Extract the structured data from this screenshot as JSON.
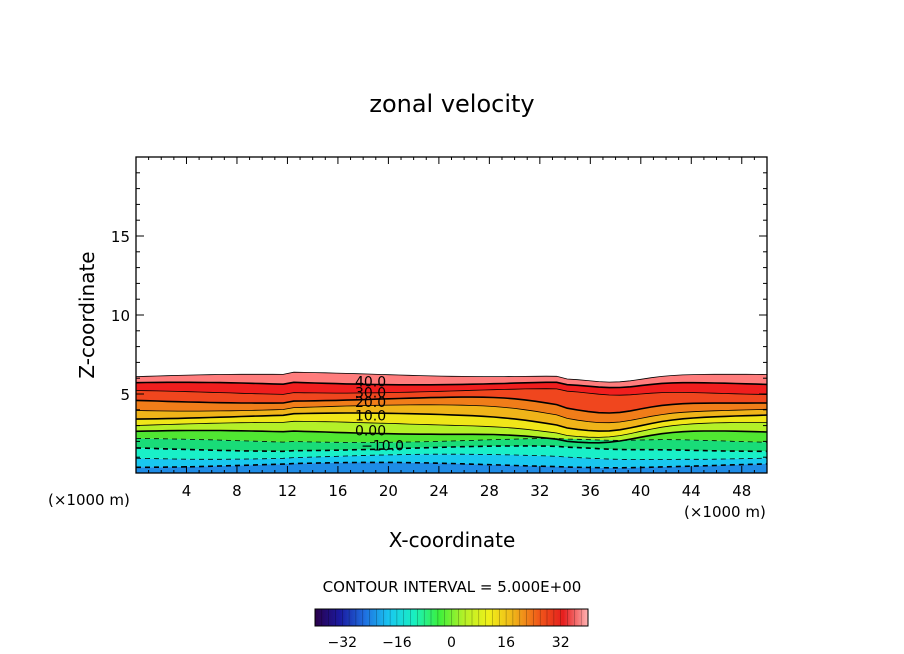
{
  "chart_data": {
    "type": "heatmap",
    "title": "zonal velocity",
    "xlabel": "X-coordinate",
    "ylabel": "Z-coordinate",
    "x_unit_left": "(×1000 m)",
    "x_unit_right": "(×1000 m)",
    "xlim": [
      0,
      50
    ],
    "ylim": [
      0,
      20
    ],
    "x_ticks": [
      "4",
      "8",
      "12",
      "16",
      "20",
      "24",
      "28",
      "32",
      "36",
      "40",
      "44",
      "48"
    ],
    "y_ticks": [
      "5",
      "10",
      "15"
    ],
    "grid": false,
    "contour_interval_label": "CONTOUR INTERVAL = 5.000E+00",
    "contour_labels": [
      "40.0",
      "30.0",
      "20.0",
      "10.0",
      "0.00",
      "−10.0"
    ],
    "contour_levels": [
      40,
      30,
      20,
      10,
      0,
      -10
    ],
    "colorbar": {
      "range": [
        -40,
        40
      ],
      "tick_labels": [
        "−32",
        "−16",
        "0",
        "16",
        "32"
      ],
      "tick_values": [
        -32,
        -16,
        0,
        16,
        32
      ],
      "colors": [
        "#2a004a",
        "#1a1aa0",
        "#1f6fe0",
        "#19c8f0",
        "#19f0c0",
        "#3cf03c",
        "#b4f028",
        "#f0f019",
        "#f0b419",
        "#f05a19",
        "#e61e1e",
        "#ffb4b4"
      ]
    },
    "field_colors": [
      {
        "value": 38,
        "color": "#ff7d7d"
      },
      {
        "value": 33,
        "color": "#f01e1e"
      },
      {
        "value": 28,
        "color": "#f0461e"
      },
      {
        "value": 23,
        "color": "#f07d19"
      },
      {
        "value": 18,
        "color": "#f0b419"
      },
      {
        "value": 13,
        "color": "#f0e619"
      },
      {
        "value": 8,
        "color": "#b4f028"
      },
      {
        "value": 3,
        "color": "#50e632"
      },
      {
        "value": -2,
        "color": "#19dc78"
      },
      {
        "value": -7,
        "color": "#19f0c8"
      },
      {
        "value": -12,
        "color": "#19c8f0"
      },
      {
        "value": -17,
        "color": "#1e8ce6"
      }
    ],
    "top_of_field_z": 6.1
  }
}
